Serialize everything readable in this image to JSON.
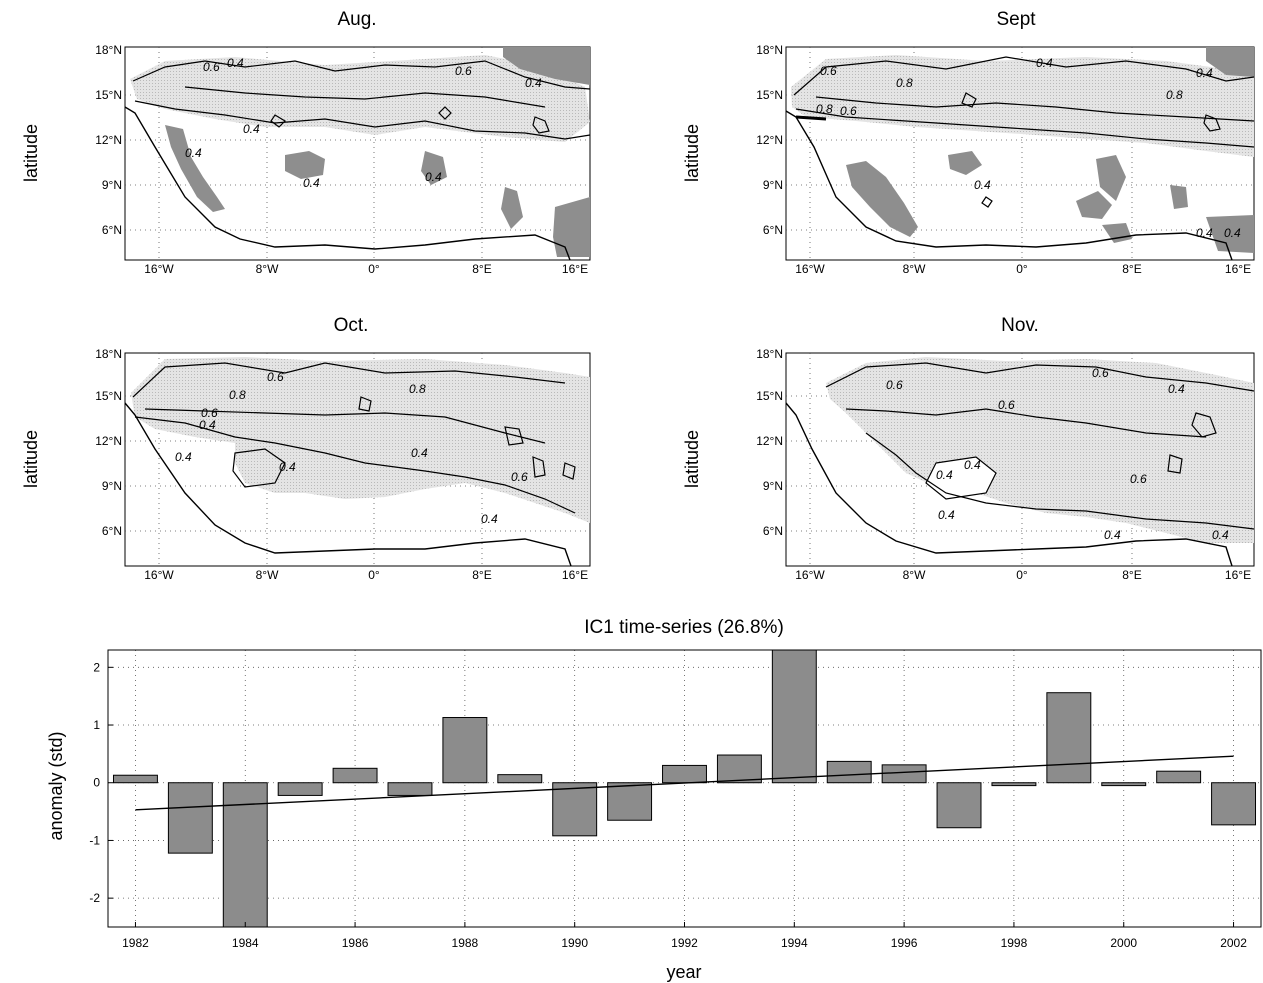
{
  "maps": [
    {
      "title": "Aug.",
      "ylabel": "latitude",
      "yticks": [
        "18°N",
        "15°N",
        "12°N",
        "9°N",
        "6°N"
      ],
      "xticks": [
        "16°W",
        "8°W",
        "0°",
        "8°E",
        "16°E"
      ],
      "contour_labels": [
        "0.6",
        "0.4",
        "0.6",
        "0.4",
        "0.4",
        "0.4",
        "0.4",
        "0.4"
      ]
    },
    {
      "title": "Sept",
      "ylabel": "latitude",
      "yticks": [
        "18°N",
        "15°N",
        "12°N",
        "9°N",
        "6°N"
      ],
      "xticks": [
        "16°W",
        "8°W",
        "0°",
        "8°E",
        "16°E"
      ],
      "contour_labels": [
        "0.6",
        "0.8",
        "0.4",
        "0.8",
        "0.6",
        "0.8",
        "0.4",
        "0.4",
        "0.4",
        "0.4"
      ]
    },
    {
      "title": "Oct.",
      "ylabel": "latitude",
      "yticks": [
        "18°N",
        "15°N",
        "12°N",
        "9°N",
        "6°N"
      ],
      "xticks": [
        "16°W",
        "8°W",
        "0°",
        "8°E",
        "16°E"
      ],
      "contour_labels": [
        "0.6",
        "0.8",
        "0.6",
        "0.8",
        "0.4",
        "0.4",
        "0.4",
        "0.4",
        "0.6",
        "0.4"
      ]
    },
    {
      "title": "Nov.",
      "ylabel": "latitude",
      "yticks": [
        "18°N",
        "15°N",
        "12°N",
        "9°N",
        "6°N"
      ],
      "xticks": [
        "16°W",
        "8°W",
        "0°",
        "8°E",
        "16°E"
      ],
      "contour_labels": [
        "0.6",
        "0.6",
        "0.4",
        "0.6",
        "0.4",
        "0.6",
        "0.4",
        "0.4",
        "0.4",
        "0.4"
      ]
    }
  ],
  "chart_data": {
    "type": "bar",
    "title": "IC1 time-series (26.8%)",
    "xlabel": "year",
    "ylabel": "anomaly (std)",
    "xlim": [
      1981.5,
      2002.5
    ],
    "ylim": [
      -2.5,
      2.3
    ],
    "xticks": [
      1982,
      1984,
      1986,
      1988,
      1990,
      1992,
      1994,
      1996,
      1998,
      2000,
      2002
    ],
    "yticks": [
      -2,
      -1,
      0,
      1,
      2
    ],
    "grid": true,
    "colors": {
      "bar": "#8c8c8c",
      "edge": "#000000"
    },
    "series": [
      {
        "x": [
          1982,
          1983,
          1984,
          1985,
          1986,
          1987,
          1988,
          1989,
          1990,
          1991,
          1992,
          1993,
          1994,
          1995,
          1996,
          1997,
          1998,
          1999,
          2000,
          2001,
          2002
        ],
        "values": [
          0.13,
          -1.22,
          -2.5,
          -0.22,
          0.25,
          -0.22,
          1.13,
          0.14,
          -0.92,
          -0.65,
          0.3,
          0.48,
          2.3,
          0.37,
          0.31,
          -0.78,
          -0.05,
          1.56,
          -0.05,
          0.2,
          -0.73
        ]
      }
    ],
    "trend_line": {
      "x": [
        1982,
        2002
      ],
      "y": [
        -0.47,
        0.46
      ]
    }
  }
}
